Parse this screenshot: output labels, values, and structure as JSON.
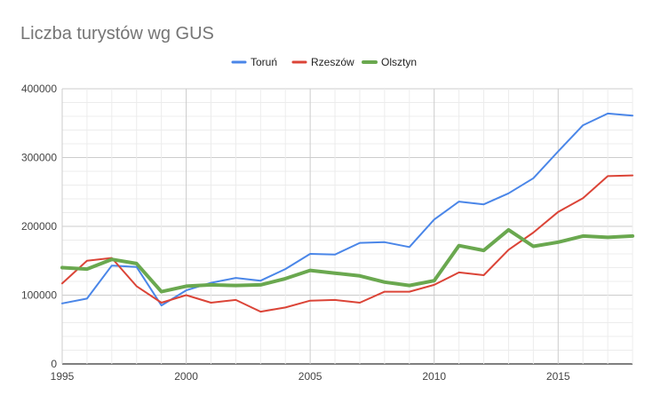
{
  "chart_data": {
    "type": "line",
    "title": "Liczba turystów wg GUS",
    "legend_position": "top",
    "grid": true,
    "x": [
      1995,
      1996,
      1997,
      1998,
      1999,
      2000,
      2001,
      2002,
      2003,
      2004,
      2005,
      2006,
      2007,
      2008,
      2009,
      2010,
      2011,
      2012,
      2013,
      2014,
      2015,
      2016,
      2017,
      2018
    ],
    "x_ticks": [
      "1995",
      "2000",
      "2005",
      "2010",
      "2015"
    ],
    "y_ticks": [
      "0",
      "100000",
      "200000",
      "300000",
      "400000"
    ],
    "xlim": [
      1995,
      2018
    ],
    "ylim": [
      0,
      400000
    ],
    "series": [
      {
        "name": "Toruń",
        "color": "#4a86e8",
        "values": [
          88000,
          95000,
          143000,
          141000,
          85000,
          107000,
          118000,
          125000,
          121000,
          138000,
          160000,
          159000,
          176000,
          177000,
          170000,
          210000,
          236000,
          232000,
          248000,
          270000,
          309000,
          347000,
          364000,
          361000
        ]
      },
      {
        "name": "Rzeszów",
        "color": "#db4437",
        "values": [
          117000,
          150000,
          154000,
          113000,
          89000,
          100000,
          89000,
          93000,
          76000,
          82000,
          92000,
          93000,
          89000,
          105000,
          105000,
          115000,
          133000,
          129000,
          166000,
          191000,
          221000,
          241000,
          273000,
          274000
        ]
      },
      {
        "name": "Olsztyn",
        "color": "#6aa84f",
        "values": [
          140000,
          138000,
          152000,
          146000,
          105000,
          113000,
          115000,
          114000,
          115000,
          124000,
          136000,
          132000,
          128000,
          119000,
          114000,
          121000,
          172000,
          165000,
          195000,
          171000,
          177000,
          186000,
          184000,
          186000
        ]
      }
    ]
  }
}
